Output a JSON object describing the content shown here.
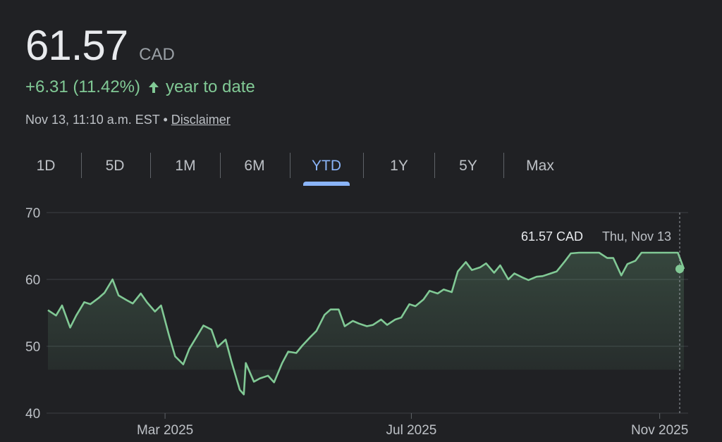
{
  "quote": {
    "price": "61.57",
    "currency": "CAD",
    "change_text": "+6.31 (11.42%)",
    "change_period": "year to date",
    "timestamp": "Nov 13, 11:10 a.m. EST",
    "separator": "•",
    "disclaimer": "Disclaimer"
  },
  "tabs": [
    {
      "label": "1D",
      "active": false
    },
    {
      "label": "5D",
      "active": false
    },
    {
      "label": "1M",
      "active": false
    },
    {
      "label": "6M",
      "active": false
    },
    {
      "label": "YTD",
      "active": true
    },
    {
      "label": "1Y",
      "active": false
    },
    {
      "label": "5Y",
      "active": false
    },
    {
      "label": "Max",
      "active": false
    }
  ],
  "colors": {
    "line": "#81c995",
    "accent": "#8ab4f8",
    "grid": "#3c4043",
    "text": "#bdc1c6"
  },
  "chart_data": {
    "type": "line",
    "x_axis": "date",
    "ylim": [
      40,
      70
    ],
    "y_ticks": [
      40,
      50,
      60,
      70
    ],
    "x_ticks": [
      "Mar 2025",
      "Jul 2025",
      "Nov 2025"
    ],
    "grid": true,
    "series": [
      {
        "values": [
          [
            "2025-01-02",
            55.4
          ],
          [
            "2025-01-06",
            54.6
          ],
          [
            "2025-01-09",
            56.1
          ],
          [
            "2025-01-13",
            52.8
          ],
          [
            "2025-01-16",
            54.6
          ],
          [
            "2025-01-20",
            56.6
          ],
          [
            "2025-01-23",
            56.3
          ],
          [
            "2025-01-27",
            57.2
          ],
          [
            "2025-01-30",
            58.0
          ],
          [
            "2025-02-03",
            60.0
          ],
          [
            "2025-02-06",
            57.6
          ],
          [
            "2025-02-10",
            56.9
          ],
          [
            "2025-02-13",
            56.4
          ],
          [
            "2025-02-17",
            57.9
          ],
          [
            "2025-02-20",
            56.6
          ],
          [
            "2025-02-24",
            55.2
          ],
          [
            "2025-02-27",
            56.1
          ],
          [
            "2025-03-03",
            51.6
          ],
          [
            "2025-03-06",
            48.5
          ],
          [
            "2025-03-10",
            47.3
          ],
          [
            "2025-03-13",
            49.6
          ],
          [
            "2025-03-17",
            51.6
          ],
          [
            "2025-03-20",
            53.1
          ],
          [
            "2025-03-24",
            52.5
          ],
          [
            "2025-03-27",
            49.9
          ],
          [
            "2025-03-31",
            51.0
          ],
          [
            "2025-04-03",
            47.6
          ],
          [
            "2025-04-07",
            43.5
          ],
          [
            "2025-04-09",
            42.8
          ],
          [
            "2025-04-10",
            47.5
          ],
          [
            "2025-04-14",
            44.7
          ],
          [
            "2025-04-17",
            45.2
          ],
          [
            "2025-04-21",
            45.6
          ],
          [
            "2025-04-24",
            44.6
          ],
          [
            "2025-04-28",
            47.5
          ],
          [
            "2025-05-01",
            49.2
          ],
          [
            "2025-05-05",
            49.0
          ],
          [
            "2025-05-08",
            50.1
          ],
          [
            "2025-05-12",
            51.4
          ],
          [
            "2025-05-15",
            52.3
          ],
          [
            "2025-05-19",
            54.7
          ],
          [
            "2025-05-22",
            55.5
          ],
          [
            "2025-05-26",
            55.5
          ],
          [
            "2025-05-29",
            53.0
          ],
          [
            "2025-06-02",
            53.8
          ],
          [
            "2025-06-05",
            53.4
          ],
          [
            "2025-06-09",
            53.0
          ],
          [
            "2025-06-12",
            53.2
          ],
          [
            "2025-06-16",
            54.0
          ],
          [
            "2025-06-19",
            53.2
          ],
          [
            "2025-06-23",
            54.0
          ],
          [
            "2025-06-26",
            54.3
          ],
          [
            "2025-06-30",
            56.3
          ],
          [
            "2025-07-03",
            56.0
          ],
          [
            "2025-07-07",
            57.0
          ],
          [
            "2025-07-10",
            58.3
          ],
          [
            "2025-07-14",
            57.9
          ],
          [
            "2025-07-17",
            58.5
          ],
          [
            "2025-07-21",
            58.1
          ],
          [
            "2025-07-24",
            61.2
          ],
          [
            "2025-07-28",
            62.6
          ],
          [
            "2025-07-31",
            61.4
          ],
          [
            "2025-08-04",
            61.8
          ],
          [
            "2025-08-07",
            62.4
          ],
          [
            "2025-08-11",
            61.0
          ],
          [
            "2025-08-14",
            62.1
          ],
          [
            "2025-08-18",
            60.0
          ],
          [
            "2025-08-21",
            60.9
          ],
          [
            "2025-08-25",
            60.3
          ],
          [
            "2025-08-28",
            59.9
          ],
          [
            "2025-09-01",
            60.4
          ],
          [
            "2025-09-04",
            60.5
          ],
          [
            "2025-09-08",
            60.9
          ],
          [
            "2025-09-11",
            61.2
          ],
          [
            "2025-09-15",
            62.7
          ],
          [
            "2025-09-18",
            63.9
          ],
          [
            "2025-09-22",
            64.0
          ],
          [
            "2025-09-25",
            64.0
          ],
          [
            "2025-09-29",
            64.0
          ],
          [
            "2025-10-02",
            64.0
          ],
          [
            "2025-10-06",
            63.2
          ],
          [
            "2025-10-09",
            63.2
          ],
          [
            "2025-10-13",
            60.6
          ],
          [
            "2025-10-16",
            62.3
          ],
          [
            "2025-10-20",
            62.8
          ],
          [
            "2025-10-23",
            64.0
          ],
          [
            "2025-10-27",
            64.0
          ],
          [
            "2025-10-30",
            64.0
          ],
          [
            "2025-11-03",
            64.0
          ],
          [
            "2025-11-06",
            64.0
          ],
          [
            "2025-11-10",
            64.0
          ],
          [
            "2025-11-13",
            61.57
          ]
        ]
      }
    ],
    "tooltip": {
      "value": "61.57 CAD",
      "date": "Thu, Nov 13"
    }
  }
}
